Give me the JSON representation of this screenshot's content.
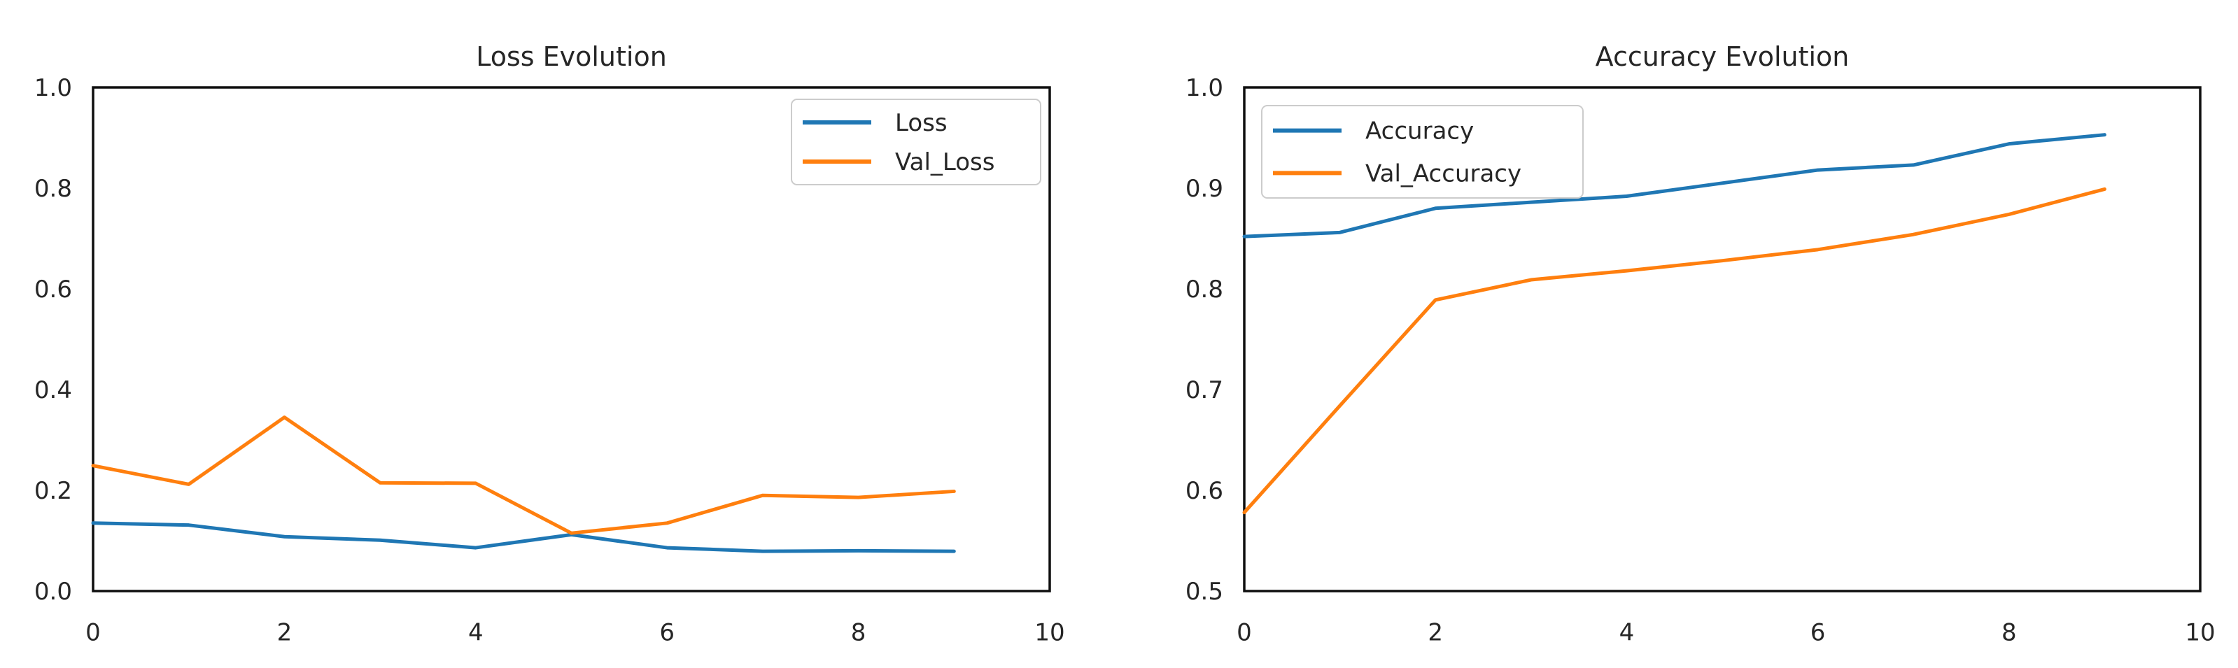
{
  "figure": {
    "background": "#ffffff",
    "text_color": "#262626",
    "spine_color": "#0f0f0f",
    "legend_border_color": "#cccccc",
    "legend_fill": "#ffffff"
  },
  "chart_data": [
    {
      "type": "line",
      "title": "Loss Evolution",
      "xlabel": "",
      "ylabel": "",
      "x": [
        0,
        1,
        2,
        3,
        4,
        5,
        6,
        7,
        8,
        9
      ],
      "series": [
        {
          "name": "Loss",
          "color": "#1f77b4",
          "values": [
            0.135,
            0.131,
            0.108,
            0.101,
            0.086,
            0.112,
            0.086,
            0.079,
            0.08,
            0.079
          ]
        },
        {
          "name": "Val_Loss",
          "color": "#ff7f0e",
          "values": [
            0.249,
            0.212,
            0.345,
            0.215,
            0.214,
            0.115,
            0.135,
            0.19,
            0.186,
            0.198
          ]
        }
      ],
      "xlim": [
        0,
        10
      ],
      "ylim": [
        0.0,
        1.0
      ],
      "xtick_labels": [
        "0",
        "2",
        "4",
        "6",
        "8",
        "10"
      ],
      "xtick_values": [
        0,
        2,
        4,
        6,
        8,
        10
      ],
      "ytick_labels": [
        "0.0",
        "0.2",
        "0.4",
        "0.6",
        "0.8",
        "1.0"
      ],
      "ytick_values": [
        0.0,
        0.2,
        0.4,
        0.6,
        0.8,
        1.0
      ],
      "legend_position": "upper right",
      "grid": false
    },
    {
      "type": "line",
      "title": "Accuracy Evolution",
      "xlabel": "",
      "ylabel": "",
      "x": [
        0,
        1,
        2,
        3,
        4,
        5,
        6,
        7,
        8,
        9
      ],
      "series": [
        {
          "name": "Accuracy",
          "color": "#1f77b4",
          "values": [
            0.852,
            0.856,
            0.88,
            0.886,
            0.892,
            0.905,
            0.918,
            0.923,
            0.944,
            0.953
          ]
        },
        {
          "name": "Val_Accuracy",
          "color": "#ff7f0e",
          "values": [
            0.578,
            0.684,
            0.789,
            0.809,
            0.818,
            0.828,
            0.839,
            0.854,
            0.874,
            0.899
          ]
        }
      ],
      "xlim": [
        0,
        10
      ],
      "ylim": [
        0.5,
        1.0
      ],
      "xtick_labels": [
        "0",
        "2",
        "4",
        "6",
        "8",
        "10"
      ],
      "xtick_values": [
        0,
        2,
        4,
        6,
        8,
        10
      ],
      "ytick_labels": [
        "0.5",
        "0.6",
        "0.7",
        "0.8",
        "0.9",
        "1.0"
      ],
      "ytick_values": [
        0.5,
        0.6,
        0.7,
        0.8,
        0.9,
        1.0
      ],
      "legend_position": "upper left",
      "grid": false
    }
  ]
}
